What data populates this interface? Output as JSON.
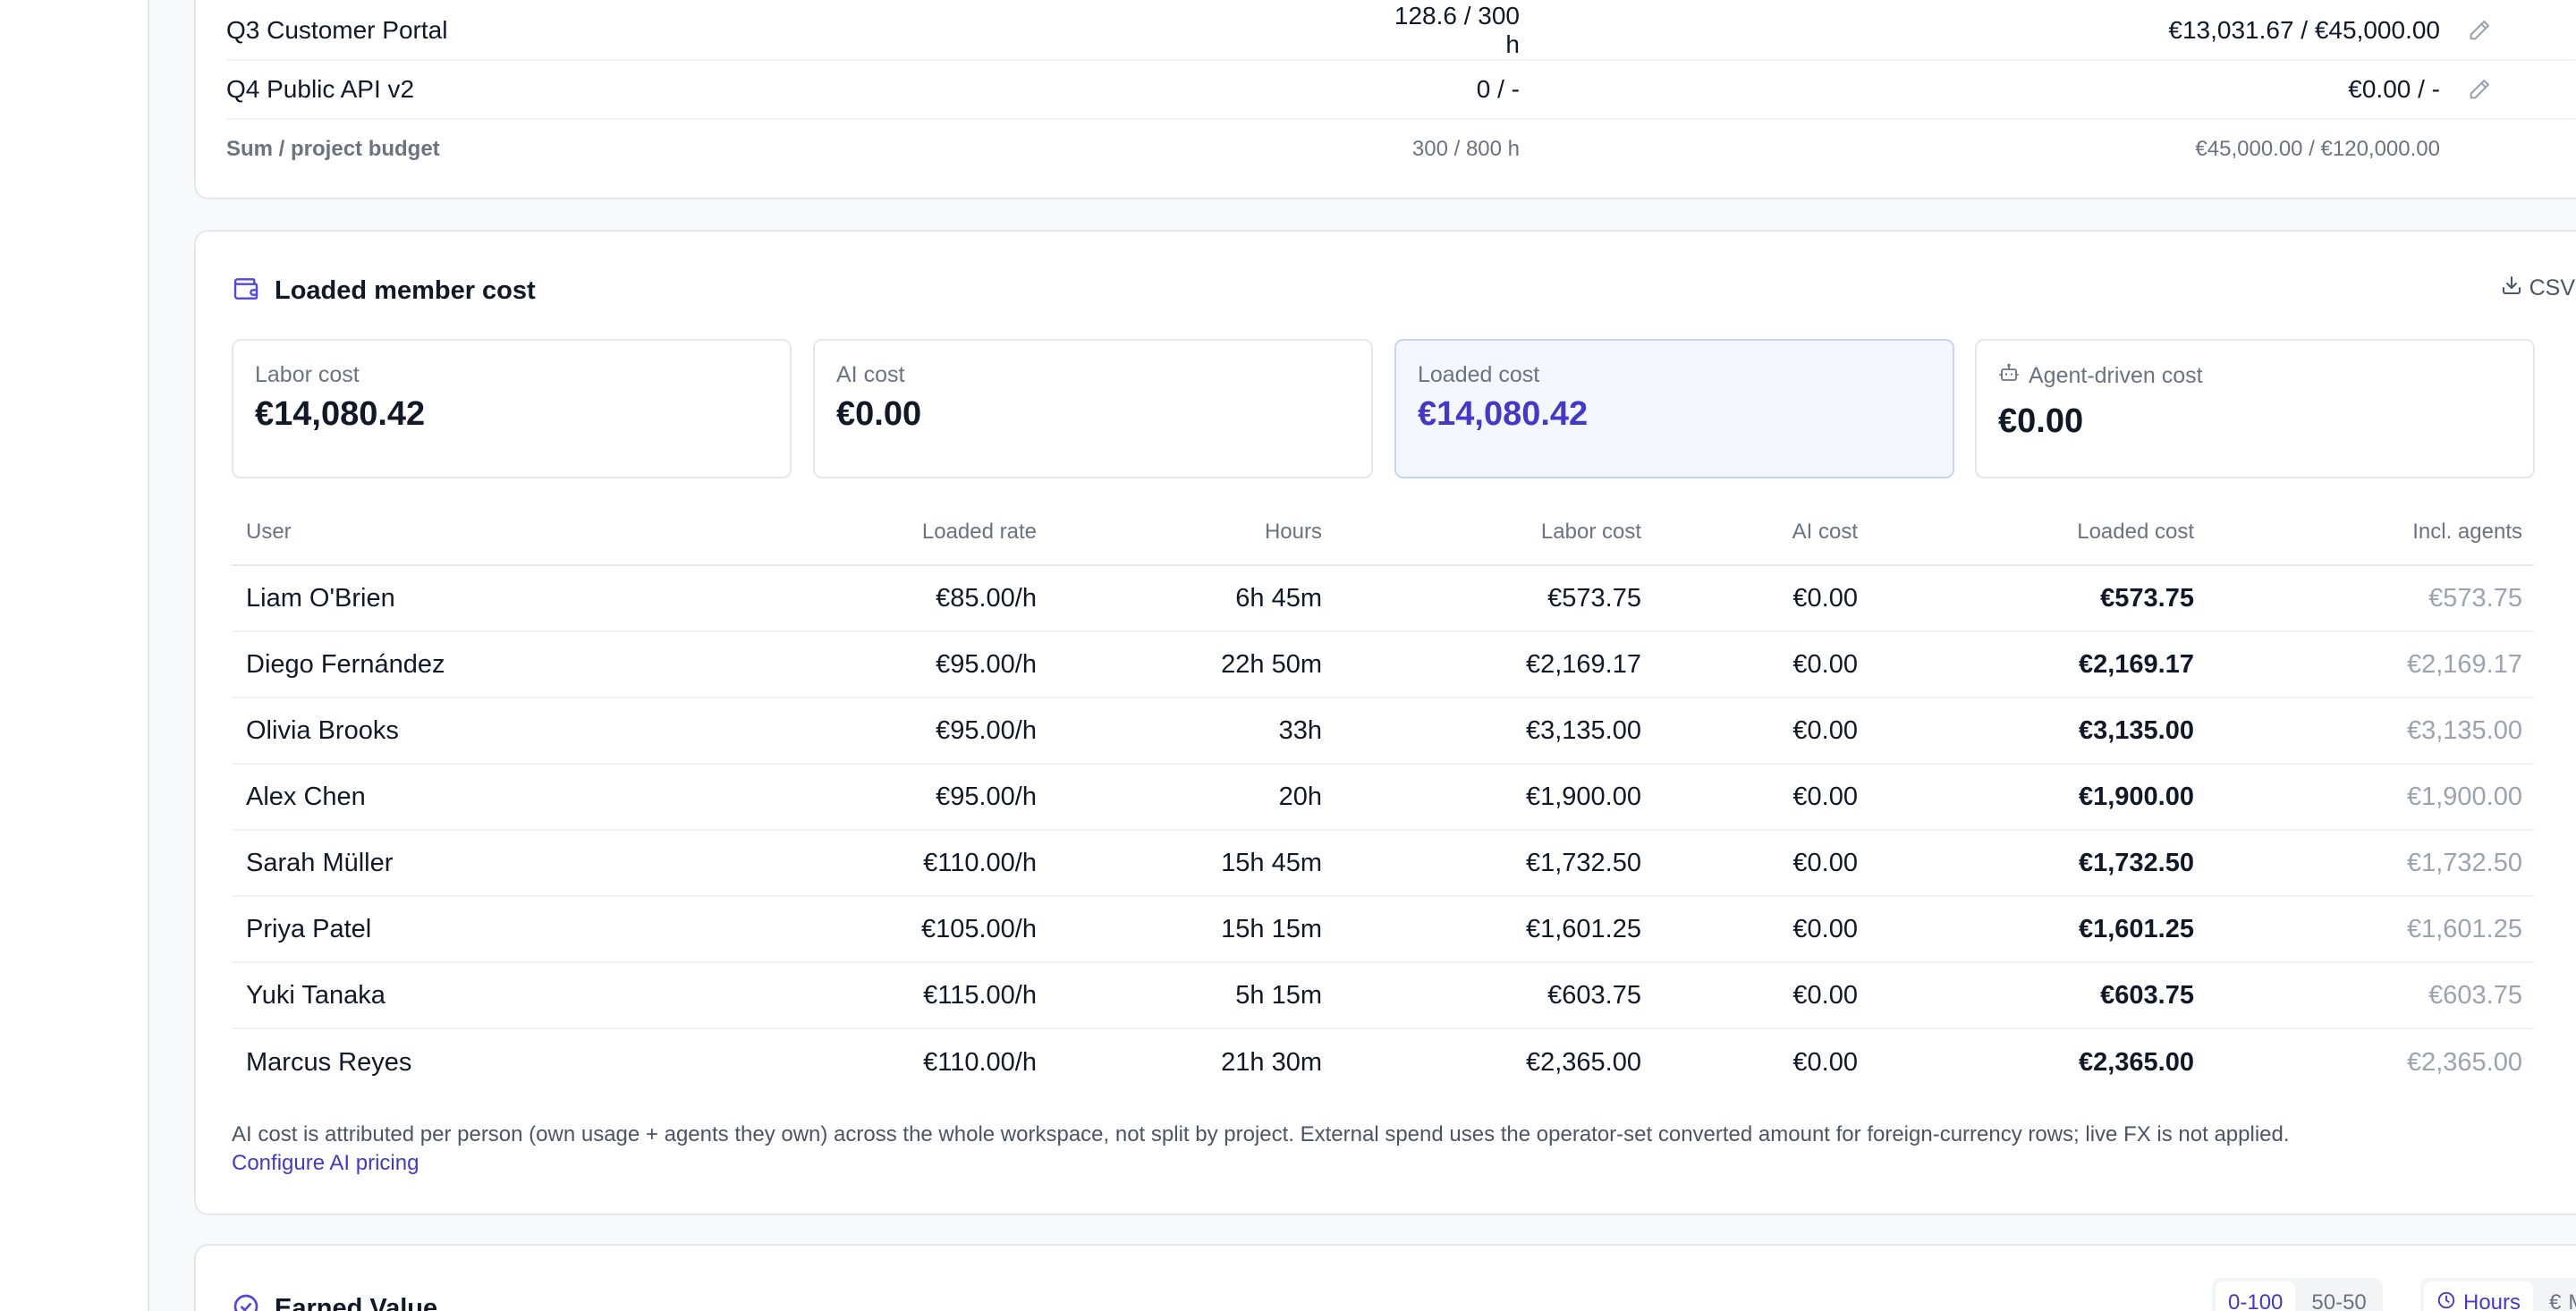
{
  "budget": {
    "rows": [
      {
        "name": "Q3 Customer Portal",
        "hours": "128.6 / 300 h",
        "money": "€13,031.67 / €45,000.00"
      },
      {
        "name": "Q4 Public API v2",
        "hours": "0 / -",
        "money": "€0.00 / -"
      }
    ],
    "sum": {
      "label": "Sum / project budget",
      "hours": "300 / 800 h",
      "money": "€45,000.00 / €120,000.00"
    }
  },
  "cost": {
    "title": "Loaded member cost",
    "csv_label": "CSV",
    "stats": [
      {
        "label": "Labor cost",
        "value": "€14,080.42"
      },
      {
        "label": "AI cost",
        "value": "€0.00"
      },
      {
        "label": "Loaded cost",
        "value": "€14,080.42"
      },
      {
        "label": "Agent-driven cost",
        "value": "€0.00"
      }
    ],
    "headers": {
      "user": "User",
      "rate": "Loaded rate",
      "hours": "Hours",
      "labor": "Labor cost",
      "ai": "AI cost",
      "loaded": "Loaded cost",
      "agents": "Incl. agents"
    },
    "rows": [
      {
        "user": "Liam O'Brien",
        "rate": "€85.00/h",
        "hours": "6h 45m",
        "labor": "€573.75",
        "ai": "€0.00",
        "loaded": "€573.75",
        "agents": "€573.75"
      },
      {
        "user": "Diego Fernández",
        "rate": "€95.00/h",
        "hours": "22h 50m",
        "labor": "€2,169.17",
        "ai": "€0.00",
        "loaded": "€2,169.17",
        "agents": "€2,169.17"
      },
      {
        "user": "Olivia Brooks",
        "rate": "€95.00/h",
        "hours": "33h",
        "labor": "€3,135.00",
        "ai": "€0.00",
        "loaded": "€3,135.00",
        "agents": "€3,135.00"
      },
      {
        "user": "Alex Chen",
        "rate": "€95.00/h",
        "hours": "20h",
        "labor": "€1,900.00",
        "ai": "€0.00",
        "loaded": "€1,900.00",
        "agents": "€1,900.00"
      },
      {
        "user": "Sarah Müller",
        "rate": "€110.00/h",
        "hours": "15h 45m",
        "labor": "€1,732.50",
        "ai": "€0.00",
        "loaded": "€1,732.50",
        "agents": "€1,732.50"
      },
      {
        "user": "Priya Patel",
        "rate": "€105.00/h",
        "hours": "15h 15m",
        "labor": "€1,601.25",
        "ai": "€0.00",
        "loaded": "€1,601.25",
        "agents": "€1,601.25"
      },
      {
        "user": "Yuki Tanaka",
        "rate": "€115.00/h",
        "hours": "5h 15m",
        "labor": "€603.75",
        "ai": "€0.00",
        "loaded": "€603.75",
        "agents": "€603.75"
      },
      {
        "user": "Marcus Reyes",
        "rate": "€110.00/h",
        "hours": "21h 30m",
        "labor": "€2,365.00",
        "ai": "€0.00",
        "loaded": "€2,365.00",
        "agents": "€2,365.00"
      }
    ],
    "note": "AI cost is attributed per person (own usage + agents they own) across the whole workspace, not split by project. External spend uses the operator-set converted amount for foreign-currency rows; live FX is not applied.",
    "config_link": "Configure AI pricing"
  },
  "earned_value": {
    "title": "Earned Value",
    "method_options": [
      "0-100",
      "50-50"
    ],
    "method_selected": "0-100",
    "unit_options": [
      "Hours",
      "Money"
    ],
    "unit_selected": "Hours"
  },
  "icons": {
    "wallet": "wallet-icon",
    "download": "download-icon",
    "pencil": "pencil-icon",
    "robot": "robot-icon",
    "gauge": "gauge-icon",
    "clock": "clock-icon",
    "euro": "euro-icon"
  },
  "colors": {
    "accent": "#4338ca",
    "highlight_bg": "#f5f7ff",
    "border": "#e5e7eb"
  }
}
